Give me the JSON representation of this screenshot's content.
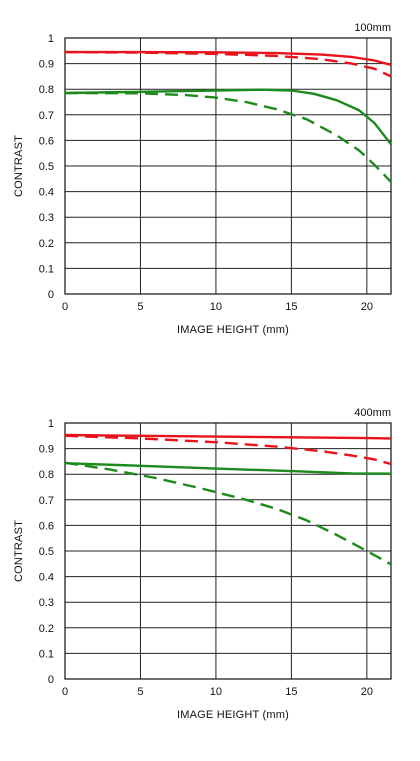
{
  "colors": {
    "red": "#e8131b",
    "green": "#1c8a1c",
    "grid": "#222222"
  },
  "chart_data": [
    {
      "type": "line",
      "title": "100mm",
      "xlabel": "IMAGE HEIGHT (mm)",
      "ylabel": "CONTRAST",
      "xlim": [
        0,
        21.6
      ],
      "ylim": [
        0,
        1
      ],
      "xticks": [
        0,
        5,
        10,
        15,
        20
      ],
      "yticks": [
        0,
        0.1,
        0.2,
        0.3,
        0.4,
        0.5,
        0.6,
        0.7,
        0.8,
        0.9,
        1
      ],
      "grid": true,
      "series": [
        {
          "color": "red",
          "dash": "solid",
          "x": [
            0,
            5,
            10,
            14,
            17,
            19,
            20.5,
            21.6
          ],
          "y": [
            0.945,
            0.945,
            0.944,
            0.941,
            0.935,
            0.926,
            0.912,
            0.895
          ]
        },
        {
          "color": "red",
          "dash": "dashed",
          "x": [
            0,
            5,
            10,
            14,
            17,
            19,
            20.5,
            21.6
          ],
          "y": [
            0.945,
            0.943,
            0.938,
            0.93,
            0.917,
            0.9,
            0.88,
            0.85
          ]
        },
        {
          "color": "green",
          "dash": "solid",
          "x": [
            0,
            5,
            10,
            13,
            15,
            16.5,
            18,
            19.5,
            20.5,
            21.6
          ],
          "y": [
            0.785,
            0.79,
            0.795,
            0.798,
            0.795,
            0.782,
            0.757,
            0.717,
            0.668,
            0.585
          ]
        },
        {
          "color": "green",
          "dash": "dashed",
          "x": [
            0,
            5,
            8,
            10,
            12,
            14,
            16,
            18,
            19.5,
            20.5,
            21.6
          ],
          "y": [
            0.785,
            0.784,
            0.777,
            0.767,
            0.75,
            0.722,
            0.683,
            0.62,
            0.56,
            0.505,
            0.438
          ]
        }
      ]
    },
    {
      "type": "line",
      "title": "400mm",
      "xlabel": "IMAGE HEIGHT (mm)",
      "ylabel": "CONTRAST",
      "xlim": [
        0,
        21.6
      ],
      "ylim": [
        0,
        1
      ],
      "xticks": [
        0,
        5,
        10,
        15,
        20
      ],
      "yticks": [
        0,
        0.1,
        0.2,
        0.3,
        0.4,
        0.5,
        0.6,
        0.7,
        0.8,
        0.9,
        1
      ],
      "grid": true,
      "series": [
        {
          "color": "red",
          "dash": "solid",
          "x": [
            0,
            5,
            10,
            15,
            20,
            21.6
          ],
          "y": [
            0.953,
            0.95,
            0.947,
            0.944,
            0.941,
            0.94
          ]
        },
        {
          "color": "red",
          "dash": "dashed",
          "x": [
            0,
            5,
            10,
            14,
            17,
            19,
            20.5,
            21.6
          ],
          "y": [
            0.95,
            0.94,
            0.925,
            0.908,
            0.89,
            0.873,
            0.858,
            0.84
          ]
        },
        {
          "color": "green",
          "dash": "solid",
          "x": [
            0,
            5,
            10,
            15,
            19,
            21.6
          ],
          "y": [
            0.843,
            0.833,
            0.822,
            0.812,
            0.803,
            0.802
          ]
        },
        {
          "color": "green",
          "dash": "dashed",
          "x": [
            0,
            3,
            6,
            9,
            12,
            14,
            16,
            18,
            20,
            21.6
          ],
          "y": [
            0.845,
            0.818,
            0.785,
            0.745,
            0.7,
            0.665,
            0.62,
            0.563,
            0.5,
            0.448
          ]
        }
      ]
    }
  ]
}
